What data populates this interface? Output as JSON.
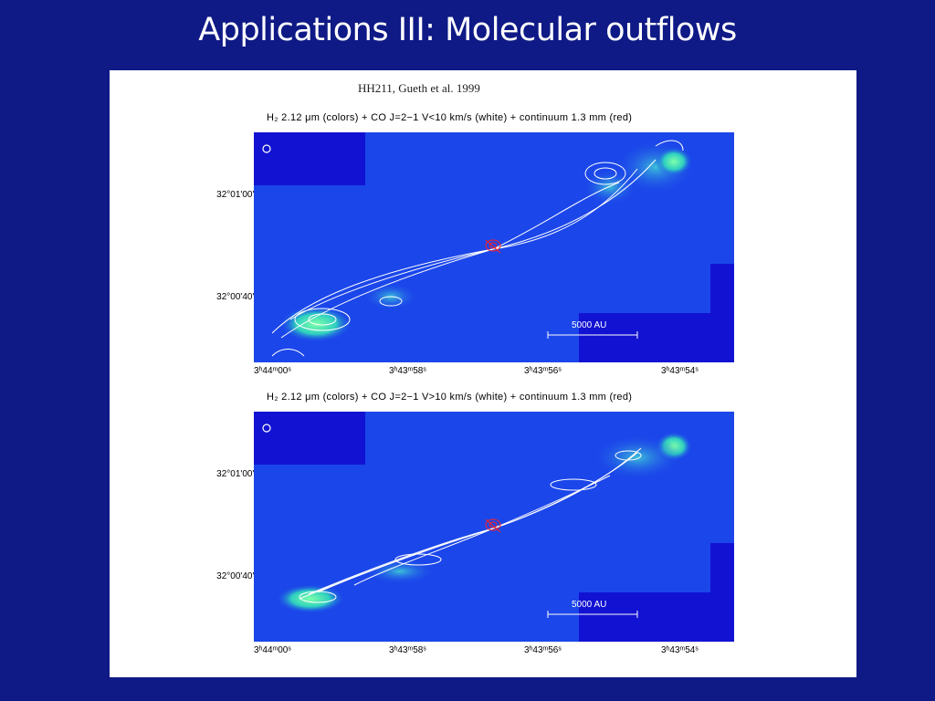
{
  "slide": {
    "title": "Applications III: Molecular outflows"
  },
  "figure": {
    "citation": "HH211, Gueth et al. 1999",
    "panels": [
      {
        "caption": "H₂ 2.12 μm (colors) + CO J=2−1 V<10 km/s (white) + continuum 1.3 mm (red)",
        "dec_labels": [
          "32°01'00\"",
          "32°00'40\""
        ],
        "ra_labels": [
          "3ʰ44ᵐ00ˢ",
          "3ʰ43ᵐ58ˢ",
          "3ʰ43ᵐ56ˢ",
          "3ʰ43ᵐ54ˢ"
        ],
        "scale_bar": "5000 AU"
      },
      {
        "caption": "H₂ 2.12 μm (colors) + CO J=2−1 V>10 km/s (white) + continuum 1.3 mm (red)",
        "dec_labels": [
          "32°01'00\"",
          "32°00'40\""
        ],
        "ra_labels": [
          "3ʰ44ᵐ00ˢ",
          "3ʰ43ᵐ58ˢ",
          "3ʰ43ᵐ56ˢ",
          "3ʰ43ᵐ54ˢ"
        ],
        "scale_bar": "5000 AU"
      }
    ]
  },
  "colors": {
    "slide_background": "#0f1a86",
    "map_background": "#1b46ea",
    "h2_emission": "#3fe0a0",
    "co_contours": "#ffffff",
    "continuum_contours": "#ff2020"
  }
}
